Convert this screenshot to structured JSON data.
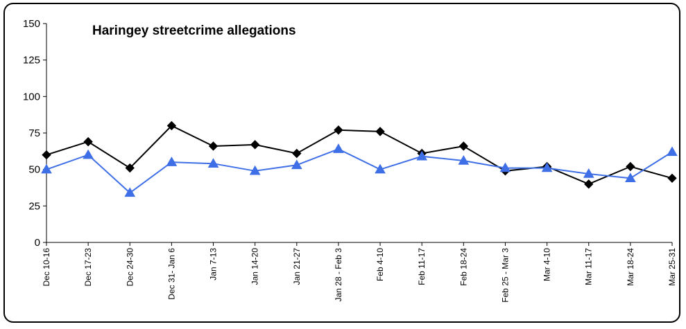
{
  "chart_data": {
    "type": "line",
    "title": "Haringey streetcrime allegations",
    "xlabel": "",
    "ylabel": "",
    "ylim": [
      0,
      150
    ],
    "yticks": [
      0,
      25,
      50,
      75,
      100,
      125,
      150
    ],
    "grid": false,
    "legend": "none",
    "categories": [
      "Dec 10-16",
      "Dec 17-23",
      "Dec 24-30",
      "Dec 31- Jan 6",
      "Jan 7-13",
      "Jan 14-20",
      "Jan 21-27",
      "Jan 28 - Feb 3",
      "Feb 4-10",
      "Feb 11-17",
      "Feb 18-24",
      "Feb 25 - Mar 3",
      "Mar 4-10",
      "Mar 11-17",
      "Mar 18-24",
      "Mar 25-31"
    ],
    "series": [
      {
        "color": "#000000",
        "marker": "diamond",
        "values": [
          60,
          69,
          51,
          80,
          66,
          67,
          61,
          77,
          76,
          61,
          66,
          49,
          52,
          40,
          52,
          44
        ]
      },
      {
        "color": "#3f6fe6",
        "marker": "triangle",
        "values": [
          50,
          60,
          34,
          55,
          54,
          49,
          53,
          64,
          50,
          59,
          56,
          51,
          51,
          47,
          44,
          62
        ]
      }
    ]
  }
}
